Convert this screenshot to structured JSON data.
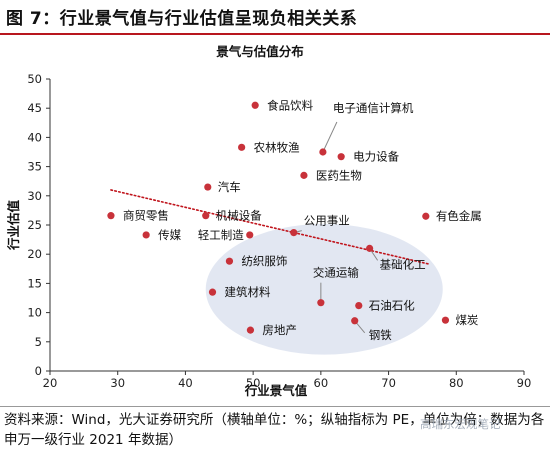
{
  "figure": {
    "title": "图 7：行业景气值与行业估值呈现负相关关系",
    "source": "资料来源：Wind，光大证券研究所（横轴单位：%；纵轴指标为 PE，单位为倍；数据为各申万一级行业 2021 年数据）",
    "watermark": "高瑞东宏观笔记"
  },
  "colors": {
    "accent": "#b8161e",
    "point": "#c8323a",
    "trend": "#c0141c",
    "cluster": "#dde3f0"
  },
  "chart_data": {
    "type": "scatter",
    "title": "景气与估值分布",
    "xlabel": "行业景气值",
    "ylabel": "行业估值",
    "xlim": [
      20,
      90
    ],
    "ylim": [
      0,
      50
    ],
    "xticks": [
      20,
      30,
      40,
      50,
      60,
      70,
      80,
      90
    ],
    "yticks": [
      0,
      5,
      10,
      15,
      20,
      25,
      30,
      35,
      40,
      45,
      50
    ],
    "grid": false,
    "points": [
      {
        "label": "食品饮料",
        "x": 50.3,
        "y": 45.5
      },
      {
        "label": "电子通信计算机",
        "x": 60.3,
        "y": 37.5
      },
      {
        "label": "农林牧渔",
        "x": 48.3,
        "y": 38.3
      },
      {
        "label": "电力设备",
        "x": 63.0,
        "y": 36.7
      },
      {
        "label": "医药生物",
        "x": 57.5,
        "y": 33.5
      },
      {
        "label": "汽车",
        "x": 43.3,
        "y": 31.5
      },
      {
        "label": "商贸零售",
        "x": 29.0,
        "y": 26.6
      },
      {
        "label": "机械设备",
        "x": 43.0,
        "y": 26.6
      },
      {
        "label": "有色金属",
        "x": 75.5,
        "y": 26.5
      },
      {
        "label": "传媒",
        "x": 34.2,
        "y": 23.3
      },
      {
        "label": "轻工制造",
        "x": 49.5,
        "y": 23.3
      },
      {
        "label": "公用事业",
        "x": 56.0,
        "y": 23.7
      },
      {
        "label": "基础化工",
        "x": 67.2,
        "y": 21.0
      },
      {
        "label": "纺织服饰",
        "x": 46.5,
        "y": 18.8
      },
      {
        "label": "建筑材料",
        "x": 44.0,
        "y": 13.5
      },
      {
        "label": "交通运输",
        "x": 60.0,
        "y": 11.7
      },
      {
        "label": "石油石化",
        "x": 65.6,
        "y": 11.2
      },
      {
        "label": "煤炭",
        "x": 78.4,
        "y": 8.7
      },
      {
        "label": "钢铁",
        "x": 65.0,
        "y": 8.6
      },
      {
        "label": "房地产",
        "x": 49.6,
        "y": 7.0
      }
    ],
    "trendline": {
      "style": "dotted",
      "x": [
        29,
        76
      ],
      "y": [
        31.0,
        18.3
      ]
    },
    "highlight_region": {
      "shape": "ellipse",
      "cx": 60.5,
      "cy": 14.0,
      "rx": 17.5,
      "ry": 11.2
    }
  }
}
